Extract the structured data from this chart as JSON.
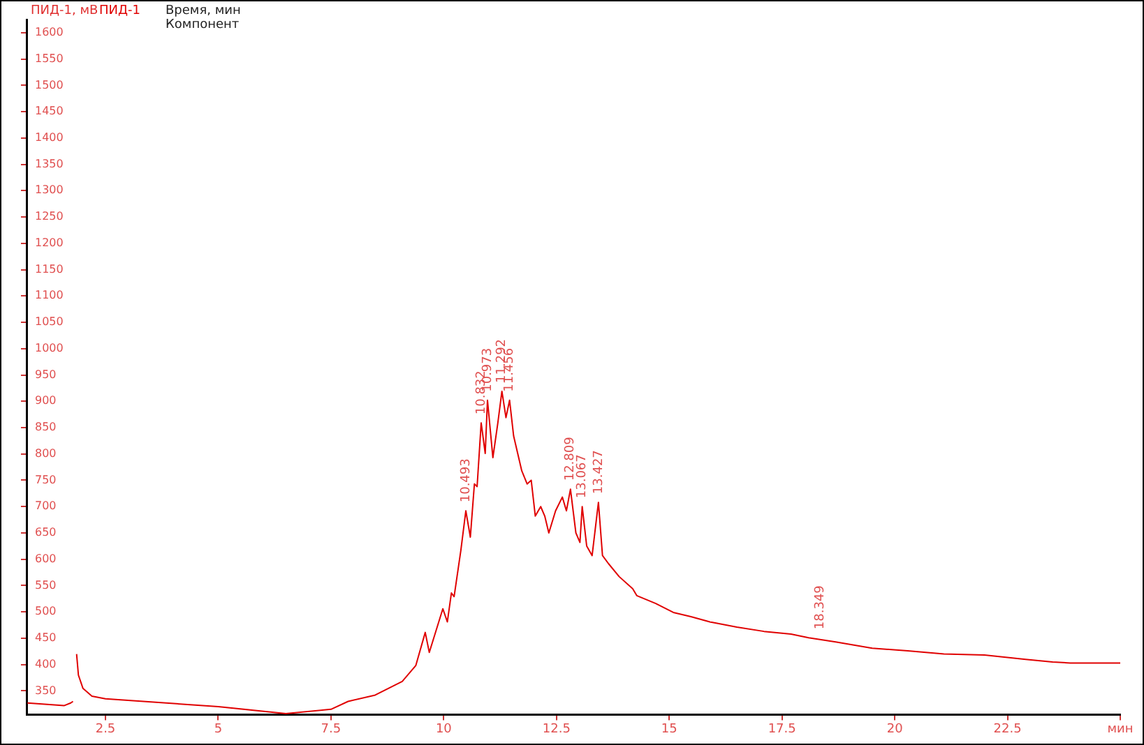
{
  "chart_data": {
    "type": "line",
    "ylabel": "ПИД-1, мВ",
    "xlim": [
      0.75,
      25
    ],
    "ylim": [
      305,
      1625
    ],
    "xticks": [
      2.5,
      5,
      7.5,
      10,
      12.5,
      15,
      17.5,
      20,
      22.5,
      {
        "value": 25,
        "label": "мин"
      }
    ],
    "yticks": [
      350,
      400,
      450,
      500,
      550,
      600,
      650,
      700,
      750,
      800,
      850,
      900,
      950,
      1000,
      1050,
      1100,
      1150,
      1200,
      1250,
      1300,
      1350,
      1400,
      1450,
      1500,
      1550,
      1600
    ],
    "marker": "none",
    "line_style": "solid",
    "series": [
      {
        "name": "ПИД-1",
        "color": "#e00000",
        "x": [
          0.77,
          1.58,
          1.73,
          1.78,
          1.8,
          1.84,
          1.86,
          1.9,
          2.0,
          2.2,
          2.5,
          5.0,
          6.5,
          7.5,
          7.88,
          8.48,
          9.08,
          9.38,
          9.59,
          9.68,
          9.98,
          10.08,
          10.17,
          10.23,
          10.38,
          10.49,
          10.59,
          10.68,
          10.74,
          10.8,
          10.83,
          10.92,
          10.97,
          11.09,
          11.2,
          11.29,
          11.38,
          11.46,
          11.55,
          11.64,
          11.73,
          11.85,
          11.94,
          12.03,
          12.15,
          12.24,
          12.33,
          12.48,
          12.63,
          12.72,
          12.81,
          12.93,
          13.02,
          13.07,
          13.17,
          13.29,
          13.43,
          13.52,
          13.65,
          13.89,
          14.19,
          14.28,
          14.7,
          15.09,
          15.48,
          15.9,
          16.5,
          17.1,
          17.7,
          18.09,
          18.69,
          19.5,
          20.29,
          21.09,
          21.99,
          22.9,
          23.5,
          23.89,
          25.0
        ],
        "values": [
          327,
          322,
          327,
          330,
          null,
          null,
          420,
          380,
          355,
          340,
          335,
          320,
          307,
          315,
          330,
          342,
          368,
          398,
          461,
          423,
          506,
          481,
          536,
          529,
          617,
          692,
          642,
          743,
          738,
          818,
          859,
          801,
          902,
          793,
          859,
          919,
          869,
          902,
          834,
          801,
          768,
          743,
          750,
          682,
          700,
          682,
          650,
          692,
          718,
          692,
          733,
          650,
          632,
          700,
          625,
          607,
          708,
          607,
          592,
          567,
          544,
          531,
          516,
          499,
          491,
          481,
          471,
          463,
          458,
          451,
          443,
          431,
          426,
          420,
          418,
          410,
          405,
          403,
          403
        ]
      }
    ],
    "annotations": [
      "Время, мин",
      "Компонент",
      {
        "text": "10.493",
        "x": 10.49,
        "y": 692
      },
      {
        "text": "10.832",
        "x": 10.83,
        "y": 859
      },
      {
        "text": "10.973",
        "x": 10.97,
        "y": 902
      },
      {
        "text": "11.292",
        "x": 11.29,
        "y": 919
      },
      {
        "text": "11.456",
        "x": 11.46,
        "y": 902
      },
      {
        "text": "12.809",
        "x": 12.81,
        "y": 733
      },
      {
        "text": "13.067",
        "x": 13.07,
        "y": 700
      },
      {
        "text": "13.427",
        "x": 13.43,
        "y": 708
      },
      {
        "text": "18.349",
        "x": 18.35,
        "y": 451
      }
    ]
  }
}
